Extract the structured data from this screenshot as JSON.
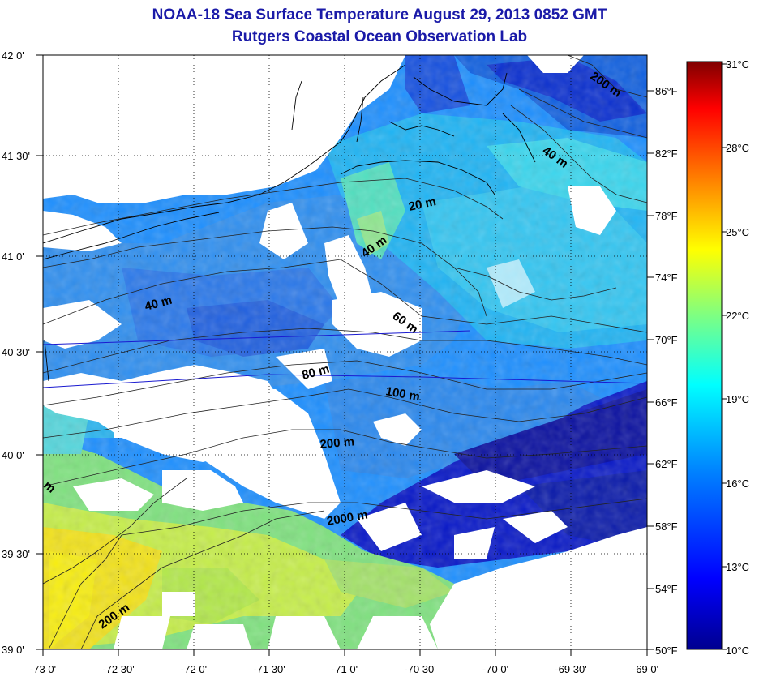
{
  "title": {
    "main": "NOAA-18 Sea Surface Temperature August 29, 2013 0852 GMT",
    "sub": "Rutgers Coastal Ocean Observation Lab"
  },
  "colors": {
    "title": "#1a1aa8",
    "land_cloud": "#ffffff",
    "coast": "#000000",
    "grid": "#000000"
  },
  "map": {
    "lat_labels": [
      "42 0'",
      "41 30'",
      "41 0'",
      "40 30'",
      "40 0'",
      "39 30'",
      "39 0'"
    ],
    "lon_labels": [
      "-73 0'",
      "-72 30'",
      "-72 0'",
      "-71 30'",
      "-71 0'",
      "-70 30'",
      "-70 0'",
      "-69 30'",
      "-69 0'"
    ],
    "lat_range": [
      39.0,
      42.0
    ],
    "lon_range": [
      -73.0,
      -69.0
    ],
    "grid": "dotted",
    "isobath_labels": [
      "200 m",
      "40 m",
      "20 m",
      "40 m",
      "40 m",
      "60 m",
      "80 m",
      "100 m",
      "200 m",
      "2000 m",
      "200 m",
      "m"
    ]
  },
  "colorbar": {
    "celsius_labels": [
      "31°C",
      "28°C",
      "25°C",
      "22°C",
      "19°C",
      "16°C",
      "13°C",
      "10°C"
    ],
    "fahrenheit_labels": [
      "86°F",
      "82°F",
      "78°F",
      "74°F",
      "70°F",
      "66°F",
      "62°F",
      "58°F",
      "54°F",
      "50°F"
    ],
    "range_celsius": [
      10,
      31
    ],
    "colormap": [
      "#00008f",
      "#0000ff",
      "#0080ff",
      "#00ffff",
      "#80ff80",
      "#ffff00",
      "#ff8000",
      "#ff0000",
      "#800000"
    ]
  }
}
